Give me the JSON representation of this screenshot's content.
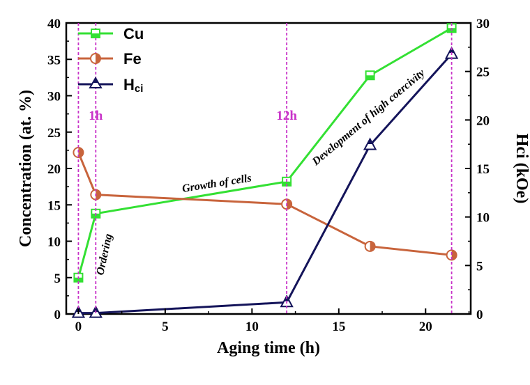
{
  "chart_data": {
    "type": "line",
    "title": "",
    "xlabel": "Aging time (h)",
    "ylabel": "Concentration (at. %)",
    "y2label": "Hci (kOe)",
    "xlim": [
      -0.7,
      22.6
    ],
    "ylim": [
      0,
      40
    ],
    "y2lim": [
      0,
      30
    ],
    "xticks": [
      0,
      5,
      10,
      15,
      20
    ],
    "yticks": [
      0,
      5,
      10,
      15,
      20,
      25,
      30,
      35,
      40
    ],
    "y2ticks": [
      0,
      5,
      10,
      15,
      20,
      25,
      30
    ],
    "legend_position": "top-left",
    "series": [
      {
        "name": "Cu",
        "axis": "left",
        "color": "#33e033",
        "marker": "half-square",
        "x": [
          0,
          1,
          12,
          16.8,
          21.5
        ],
        "values": [
          5.0,
          13.8,
          18.2,
          32.8,
          39.3
        ]
      },
      {
        "name": "Fe",
        "axis": "left",
        "color": "#c8643c",
        "marker": "half-circle",
        "x": [
          0,
          1,
          12,
          16.8,
          21.5
        ],
        "values": [
          22.2,
          16.4,
          15.1,
          9.3,
          8.1
        ]
      },
      {
        "name": "Hci",
        "legend_main": "H",
        "legend_sub": "ci",
        "axis": "right",
        "color": "#14145a",
        "marker": "half-triangle",
        "x": [
          0,
          1,
          12,
          16.8,
          21.5
        ],
        "values": [
          0.1,
          0.1,
          1.2,
          17.4,
          26.8
        ]
      }
    ],
    "markers": [
      {
        "x": 0,
        "label": ""
      },
      {
        "x": 1,
        "label": "1h"
      },
      {
        "x": 12,
        "label": "12h"
      },
      {
        "x": 21.5,
        "label": ""
      }
    ],
    "annotations": [
      {
        "text": "Ordering"
      },
      {
        "text": "Growth of cells"
      },
      {
        "text": "Development of high coercivity"
      }
    ]
  }
}
